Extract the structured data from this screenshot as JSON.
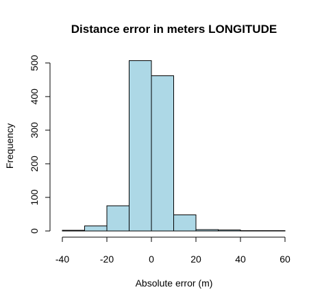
{
  "chart_data": {
    "type": "bar",
    "title": "Distance error in meters LONGITUDE",
    "xlabel": "Absolute error (m)",
    "ylabel": "Frequency",
    "bins": [
      {
        "start": -40,
        "end": -30,
        "count": 2
      },
      {
        "start": -30,
        "end": -20,
        "count": 15
      },
      {
        "start": -20,
        "end": -10,
        "count": 75
      },
      {
        "start": -10,
        "end": 0,
        "count": 507
      },
      {
        "start": 0,
        "end": 10,
        "count": 462
      },
      {
        "start": 10,
        "end": 20,
        "count": 48
      },
      {
        "start": 20,
        "end": 30,
        "count": 4
      },
      {
        "start": 30,
        "end": 40,
        "count": 3
      },
      {
        "start": 40,
        "end": 50,
        "count": 1
      },
      {
        "start": 50,
        "end": 60,
        "count": 1
      }
    ],
    "xlim": [
      -40,
      60
    ],
    "ylim": [
      0,
      510
    ],
    "x_ticks": [
      "-40",
      "-20",
      "0",
      "20",
      "40",
      "60"
    ],
    "y_ticks": [
      "0",
      "100",
      "200",
      "300",
      "400",
      "500"
    ],
    "bar_color": "#add8e6",
    "grid": false,
    "legend": "none"
  }
}
